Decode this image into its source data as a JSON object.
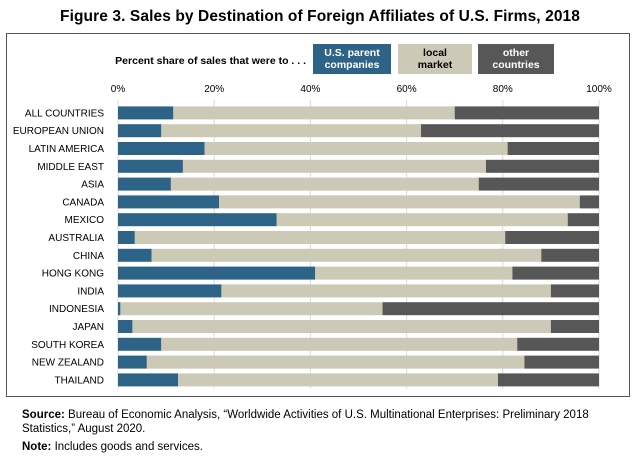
{
  "title": "Figure 3. Sales by Destination of Foreign Affiliates of U.S. Firms, 2018",
  "chart_data": {
    "type": "bar",
    "orientation": "horizontal",
    "stacked": true,
    "legend_caption": "Percent share of sales that were to . . .",
    "legend_placement": "top",
    "xlim": [
      0,
      100
    ],
    "ticks": [
      "0%",
      "20%",
      "40%",
      "60%",
      "80%",
      "100%"
    ],
    "tick_values": [
      0,
      20,
      40,
      60,
      80,
      100
    ],
    "grid": true,
    "categories": [
      "ALL COUNTRIES",
      "EUROPEAN UNION",
      "LATIN AMERICA",
      "MIDDLE EAST",
      "ASIA",
      "CANADA",
      "MEXICO",
      "AUSTRALIA",
      "CHINA",
      "HONG KONG",
      "INDIA",
      "INDONESIA",
      "JAPAN",
      "SOUTH KOREA",
      "NEW ZEALAND",
      "THAILAND"
    ],
    "series": [
      {
        "name": "U.S. parent companies",
        "legend_lines": [
          "U.S. parent",
          "companies"
        ],
        "color": "#2e6388",
        "text_color": "#ffffff",
        "values": [
          11.5,
          9,
          18,
          13.5,
          11,
          21,
          33,
          3.5,
          7,
          41,
          21.5,
          0.5,
          3,
          9,
          6,
          12.5
        ]
      },
      {
        "name": "local market",
        "legend_lines": [
          "local",
          "market"
        ],
        "color": "#ccc9b6",
        "text_color": "#000000",
        "values": [
          58.5,
          54,
          63,
          63,
          64,
          75,
          60.5,
          77,
          81,
          41,
          68.5,
          54.5,
          87,
          74,
          78.5,
          66.5
        ]
      },
      {
        "name": "other countries",
        "legend_lines": [
          "other",
          "countries"
        ],
        "color": "#575757",
        "text_color": "#ffffff",
        "values": [
          30,
          37,
          19,
          23.5,
          25,
          4,
          6.5,
          19.5,
          12,
          18,
          10,
          45,
          10,
          17,
          15.5,
          21
        ]
      }
    ]
  },
  "footer": {
    "source_label": "Source:",
    "source_text": "Bureau of Economic Analysis, “Worldwide Activities of U.S. Multinational Enterprises: Preliminary 2018 Statistics,” August 2020.",
    "note_label": "Note:",
    "note_text": "Includes goods and services."
  }
}
